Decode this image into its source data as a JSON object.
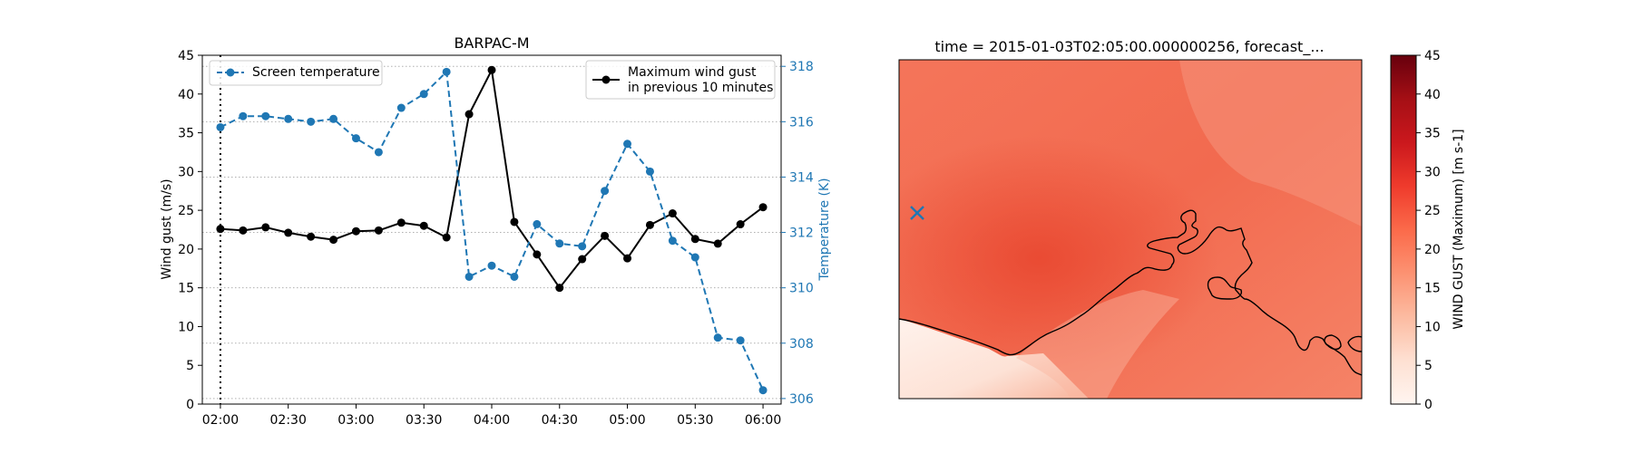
{
  "colors": {
    "temperature": "#1f77b4",
    "wind": "#000000",
    "map_low": "#fff5f0",
    "map_mid": "#ef6548",
    "map_high": "#67000d"
  },
  "chart_data": [
    {
      "type": "line",
      "title": "BARPAC-M",
      "xlabel": "",
      "x_ticks": [
        "02:00",
        "02:30",
        "03:00",
        "03:30",
        "04:00",
        "04:30",
        "05:00",
        "05:30",
        "06:00"
      ],
      "x": [
        "02:00",
        "02:10",
        "02:20",
        "02:30",
        "02:40",
        "02:50",
        "03:00",
        "03:10",
        "03:20",
        "03:30",
        "03:40",
        "03:50",
        "04:00",
        "04:10",
        "04:20",
        "04:30",
        "04:40",
        "04:50",
        "05:00",
        "05:10",
        "05:20",
        "05:30",
        "05:40",
        "05:50",
        "06:00"
      ],
      "xlim": [
        "01:52",
        "06:08"
      ],
      "marker_time": "02:00",
      "y_left": {
        "label": "Wind gust (m/s)",
        "ylim": [
          0,
          45
        ],
        "ticks": [
          "0",
          "5",
          "10",
          "15",
          "20",
          "25",
          "30",
          "35",
          "40",
          "45"
        ]
      },
      "y_right": {
        "label": "Temperature (K)",
        "ylim": [
          305.8,
          318.4
        ],
        "ticks": [
          "306",
          "308",
          "310",
          "312",
          "314",
          "316",
          "318"
        ],
        "grid_values": [
          306,
          308,
          310,
          312,
          314,
          316,
          318
        ]
      },
      "grid": "horizontal dotted (right axis)",
      "series": [
        {
          "name": "Maximum wind gust in previous 10 minutes",
          "legend_lines": [
            "Maximum wind gust",
            "in previous 10 minutes"
          ],
          "axis": "left",
          "style": "solid",
          "values": [
            22.6,
            22.4,
            22.8,
            22.1,
            21.6,
            21.2,
            22.3,
            22.4,
            23.4,
            23.0,
            21.5,
            37.4,
            43.1,
            23.5,
            19.3,
            15.0,
            18.7,
            21.7,
            18.8,
            23.1,
            24.6,
            21.3,
            20.7,
            23.2,
            25.4
          ]
        },
        {
          "name": "Screen temperature",
          "legend_lines": [
            "Screen temperature"
          ],
          "axis": "right",
          "style": "dashed",
          "values": [
            315.8,
            316.2,
            316.2,
            316.1,
            316.0,
            316.1,
            315.4,
            314.9,
            316.5,
            317.0,
            317.8,
            310.4,
            310.8,
            310.4,
            312.3,
            311.6,
            311.5,
            313.5,
            315.2,
            314.2,
            311.7,
            311.1,
            308.2,
            308.1,
            306.3
          ]
        }
      ],
      "legends": {
        "temperature": "top-left",
        "wind": "top-right"
      }
    },
    {
      "type": "heatmap",
      "title": "time = 2015-01-03T02:05:00.000000256, forecast_...",
      "colorbar": {
        "label": "WIND GUST (Maximum) [m s-1]",
        "range": [
          0,
          45
        ],
        "ticks": [
          "0",
          "5",
          "10",
          "15",
          "20",
          "25",
          "30",
          "35",
          "40",
          "45"
        ],
        "colormap": "Reds"
      },
      "station_marker": "x"
    }
  ]
}
